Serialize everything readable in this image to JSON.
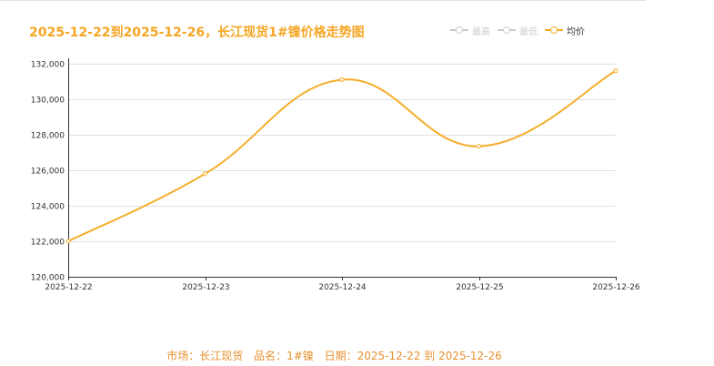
{
  "colors": {
    "avg": "#f5ae2b",
    "high": "#cccccc",
    "low": "#cccccc",
    "grid": "#e0e0e0",
    "axis": "#333333",
    "title": "#f5a623",
    "footer": "#e8902e"
  },
  "legend": {
    "items": [
      {
        "label": "最高",
        "state": "off"
      },
      {
        "label": "最低",
        "state": "off"
      },
      {
        "label": "均价",
        "state": "on"
      }
    ]
  },
  "footer": {
    "market": "市场：长江现货",
    "product": "品名：1#镍",
    "date": "日期：2025-12-22 到 2025-12-26"
  },
  "chart_data": {
    "type": "line",
    "title": "2025-12-22到2025-12-26，长江现货1#镍价格走势图",
    "categories": [
      "2025-12-22",
      "2025-12-23",
      "2025-12-24",
      "2025-12-25",
      "2025-12-26"
    ],
    "series": [
      {
        "name": "均价",
        "values": [
          122000,
          125800,
          131100,
          127350,
          131600
        ]
      }
    ],
    "ylim": [
      120000,
      132000
    ],
    "yticks": [
      120000,
      122000,
      124000,
      126000,
      128000,
      130000,
      132000
    ],
    "ytick_labels": [
      "120,000",
      "122,000",
      "124,000",
      "126,000",
      "128,000",
      "130,000",
      "132,000"
    ],
    "xlabel": "",
    "ylabel": "",
    "grid": true,
    "legend_position": "top-right",
    "smooth": true
  }
}
